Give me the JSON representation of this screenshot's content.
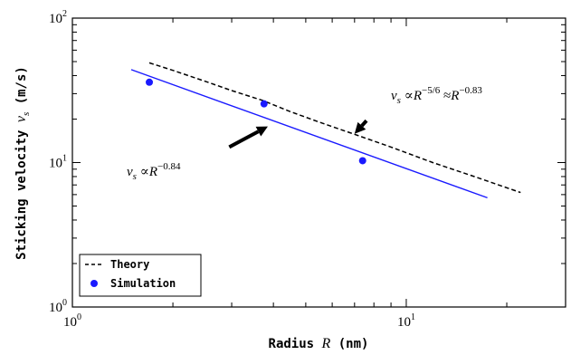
{
  "chart_data": {
    "type": "line",
    "xscale": "log",
    "yscale": "log",
    "xlim": [
      1,
      30
    ],
    "ylim": [
      1,
      100
    ],
    "xlabel_prefix": "Radius",
    "xlabel_var": "R",
    "xlabel_suffix": "(nm)",
    "ylabel_prefix": "Sticking velocity",
    "ylabel_var": "v",
    "ylabel_sub": "s",
    "ylabel_suffix": "(m/s)",
    "x_tick_labels": [
      {
        "base": "10",
        "exp": "0",
        "value": 1
      },
      {
        "base": "10",
        "exp": "1",
        "value": 10
      }
    ],
    "y_tick_labels": [
      {
        "base": "10",
        "exp": "0",
        "value": 1
      },
      {
        "base": "10",
        "exp": "1",
        "value": 10
      },
      {
        "base": "10",
        "exp": "2",
        "value": 100
      }
    ],
    "series": [
      {
        "name": "Theory",
        "kind": "dashed-line",
        "color": "#000000",
        "x": [
          1.7,
          2.0,
          2.5,
          3.0,
          3.7,
          4.5,
          5.5,
          7.0,
          9.0,
          12.0,
          16.0,
          22.0
        ],
        "y": [
          49,
          43.5,
          36.5,
          31.5,
          27,
          22.5,
          19,
          15.7,
          12.8,
          10.0,
          8.0,
          6.2
        ]
      },
      {
        "name": "Simulation",
        "kind": "scatter",
        "color": "#1a1aff",
        "x": [
          1.7,
          3.75,
          7.4
        ],
        "y": [
          36,
          25.5,
          10.3
        ]
      },
      {
        "name": "",
        "kind": "fit-line",
        "color": "#1a1aff",
        "x": [
          1.5,
          17.5
        ],
        "y": [
          44,
          5.7
        ]
      }
    ],
    "legend": {
      "position": "bottom-left",
      "entries": [
        "Theory",
        "Simulation"
      ]
    },
    "annotations": [
      {
        "id": "theory",
        "var": "v",
        "sub": "s",
        "rel": "∝",
        "base": "R",
        "exp": "−5/6",
        "approx": "≈",
        "base2": "R",
        "exp2": "−0.83",
        "arrow_from": [
          7.6,
          19.5
        ],
        "arrow_to": [
          7.0,
          15.8
        ]
      },
      {
        "id": "fit",
        "var": "v",
        "sub": "s",
        "rel": "∝",
        "base": "R",
        "exp": "−0.84",
        "arrow_from": [
          2.95,
          12.8
        ],
        "arrow_to": [
          3.85,
          17.8
        ]
      }
    ]
  }
}
